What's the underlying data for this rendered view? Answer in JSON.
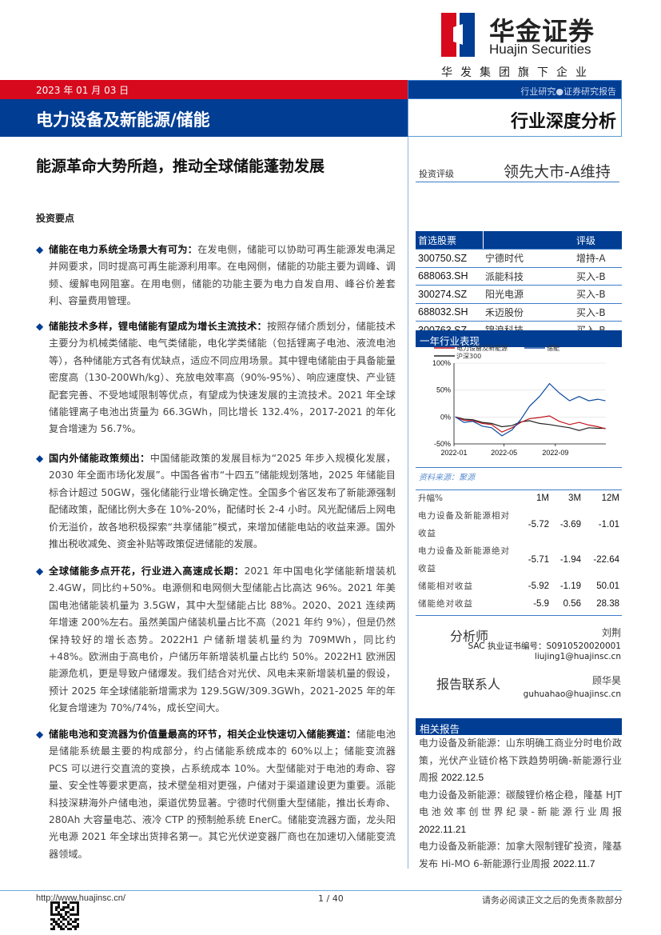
{
  "brand": {
    "name_cn": "华金证券",
    "name_en": "Huajin Securities",
    "group": "华发集团旗下企业",
    "colors": {
      "red": "#d7091c",
      "blue": "#003d93"
    }
  },
  "header": {
    "date": "2023 年 01 月 03 日",
    "sector": "电力设备及新能源/储能",
    "tag": "行业研究●证券研究报告",
    "report_type": "行业深度分析"
  },
  "headline": "能源革命大势所趋，推动全球储能蓬勃发展",
  "rating": {
    "label": "投资评级",
    "value": "领先大市-A维持"
  },
  "key_points_title": "投资要点",
  "key_points": [
    {
      "title": "储能在电力系统全场景大有可为：",
      "body": "在发电侧，储能可以协助可再生能源发电满足并网要求，同时提高可再生能源利用率。在电网侧，储能的功能主要为调峰、调频、缓解电网阻塞。在用电侧，储能的功能主要为电力自发自用、峰谷价差套利、容量费用管理。"
    },
    {
      "title": "储能技术多样，锂电储能有望成为增长主流技术：",
      "body": "按照存储介质划分，储能技术主要分为机械类储能、电气类储能，电化学类储能（包括锂离子电池、液流电池等），各种储能方式各有优缺点，适应不同应用场景。其中锂电储能由于具备能量密度高（130-200Wh/kg）、充放电效率高（90%-95%）、响应速度快、产业链配套完善、不受地域限制等优点，有望成为快速发展的主流技术。2021 年全球储能锂离子电池出货量为 66.3GWh，同比增长 132.4%，2017-2021 的年化复合增速为 56.7%。"
    },
    {
      "title": "国内外储能政策频出：",
      "body": "中国储能政策的发展目标为“2025 年步入规模化发展，2030 年全面市场化发展”。中国各省市“十四五”储能规划落地，2025 年储能目标合计超过 50GW，强化储能行业增长确定性。全国多个省区发布了新能源强制配储政策，配储比例大多在 10%-20%，配储时长 2-4 小时。风光配储后上网电价无溢价，故各地积极探索“共享储能”模式，来增加储能电站的收益来源。国外推出税收减免、资金补贴等政策促进储能的发展。"
    },
    {
      "title": "全球储能多点开花，行业进入高速成长期：",
      "body": "2021 年中国电化学储能新增装机 2.4GW，同比约+50%。电源侧和电网侧大型储能占比高达 96%。2021 年美国电池储能装机量为 3.5GW，其中大型储能占比 88%。2020、2021 连续两年增速 200%左右。虽然美国户储装机量占比不高（2021 年约 9%），但是仍然保持较好的增长态势。2022H1 户储新增装机量约为 709MWh，同比约+48%。欧洲由于高电价，户储历年新增装机量占比约 50%。2022H1 欧洲因能源危机，更是导致户储爆发。我们结合对光伏、风电未来新增装机量的假设，预计 2025 年全球储能新增需求为 129.5GW/309.3GWh，2021-2025 年的年化复合增速为 70%/74%，成长空间大。"
    },
    {
      "title": "储能电池和变流器为价值量最高的环节，相关企业快速切入储能赛道：",
      "body": "储能电池是储能系统最主要的构成部分，约占储能系统成本的 60%以上；储能变流器 PCS 可以进行交直流的变换，占系统成本 10%。大型储能对于电池的寿命、容量、安全性等要求更高，技术壁垒相对更强，户储对于渠道建设更为重要。派能科技深耕海外户储电池，渠道优势显著。宁德时代侧重大型储能，推出长寿命、280Ah 大容量电芯、液冷 CTP 的预制舱系统 EnerC。储能变流器方面，龙头阳光电源 2021 年全球出货排名第一。其它光伏逆变器厂商也在加速切入储能变流器领域。"
    }
  ],
  "stocks": {
    "headers": [
      "首选股票",
      "",
      "评级"
    ],
    "rows": [
      [
        "300750.SZ",
        "宁德时代",
        "增持-A"
      ],
      [
        "688063.SH",
        "派能科技",
        "买入-B"
      ],
      [
        "300274.SZ",
        "阳光电源",
        "买入-B"
      ],
      [
        "688032.SH",
        "禾迈股份",
        "买入-B"
      ],
      [
        "300763.SZ",
        "锦浪科技",
        "买入-B"
      ]
    ]
  },
  "chart_section_title": "一年行业表现",
  "chart_data": {
    "type": "line",
    "legend": [
      "电力设备及新能源",
      "储能",
      "沪深300"
    ],
    "legend_position": "top",
    "y_ticks": [
      "100%",
      "50%",
      "0%",
      "-50%"
    ],
    "x_ticks": [
      "2022-01",
      "2022-05",
      "2022-09"
    ],
    "ylim": [
      -50,
      100
    ],
    "xlim": [
      "2022-01",
      "2022-12-31"
    ],
    "x": [
      "2022-01-04",
      "2022-01-25",
      "2022-02-15",
      "2022-03-10",
      "2022-04-01",
      "2022-04-26",
      "2022-05-20",
      "2022-06-10",
      "2022-07-01",
      "2022-07-25",
      "2022-08-18",
      "2022-09-10",
      "2022-10-05",
      "2022-10-28",
      "2022-11-20",
      "2022-12-12",
      "2022-12-30"
    ],
    "series": [
      {
        "name": "电力设备及新能源",
        "color": "#c0141c",
        "values": [
          0,
          -6,
          -7,
          -12,
          -14,
          -28,
          -20,
          -10,
          -3,
          -1,
          2,
          -8,
          -14,
          -10,
          -15,
          -18,
          -22
        ]
      },
      {
        "name": "储能",
        "color": "#0b4aa0",
        "values": [
          0,
          -10,
          -8,
          -17,
          -20,
          -35,
          -24,
          -5,
          20,
          38,
          62,
          45,
          30,
          38,
          30,
          33,
          30
        ]
      },
      {
        "name": "沪深300",
        "color": "#222222",
        "values": [
          0,
          -4,
          -5,
          -10,
          -12,
          -18,
          -16,
          -9,
          -7,
          -12,
          -14,
          -17,
          -20,
          -25,
          -20,
          -21,
          -21
        ]
      }
    ]
  },
  "source": "资料来源：聚源",
  "performance": {
    "headers": [
      "升幅%",
      "1M",
      "3M",
      "12M"
    ],
    "rows": [
      [
        "电力设备及新能源相对收益",
        "-5.72",
        "-3.69",
        "-1.01"
      ],
      [
        "电力设备及新能源绝对收益",
        "-5.71",
        "-1.94",
        "-22.64"
      ],
      [
        "储能相对收益",
        "-5.92",
        "-1.19",
        "50.01"
      ],
      [
        "储能绝对收益",
        "-5.9",
        "0.56",
        "28.38"
      ]
    ]
  },
  "analyst": {
    "title": "分析师",
    "name": "刘荆",
    "sac": "SAC 执业证书编号：S0910520020001",
    "email": "liujing1@huajinsc.cn"
  },
  "contact": {
    "title": "报告联系人",
    "name": "顾华昊",
    "email": "guhuahao@huajinsc.cn"
  },
  "related": {
    "title": "相关报告",
    "items": [
      {
        "text": "电力设备及新能源：山东明确工商业分时电价政策，光伏产业链价格下跌趋势明确-新能源行业周报",
        "date": "2022.12.5"
      },
      {
        "text": "电力设备及新能源：碳酸锂价格企稳，隆基 HJT 电池效率创世界纪录-新能源行业周报",
        "date": "2022.11.21"
      },
      {
        "text": "电力设备及新能源：加拿大限制锂矿投资，隆基发布 Hi-MO 6-新能源行业周报",
        "date": "2022.11.7"
      }
    ]
  },
  "footer": {
    "url": "http://www.huajinsc.cn/",
    "page": "1 / 40",
    "disclaimer": "请务必阅读正文之后的免责条款部分"
  }
}
